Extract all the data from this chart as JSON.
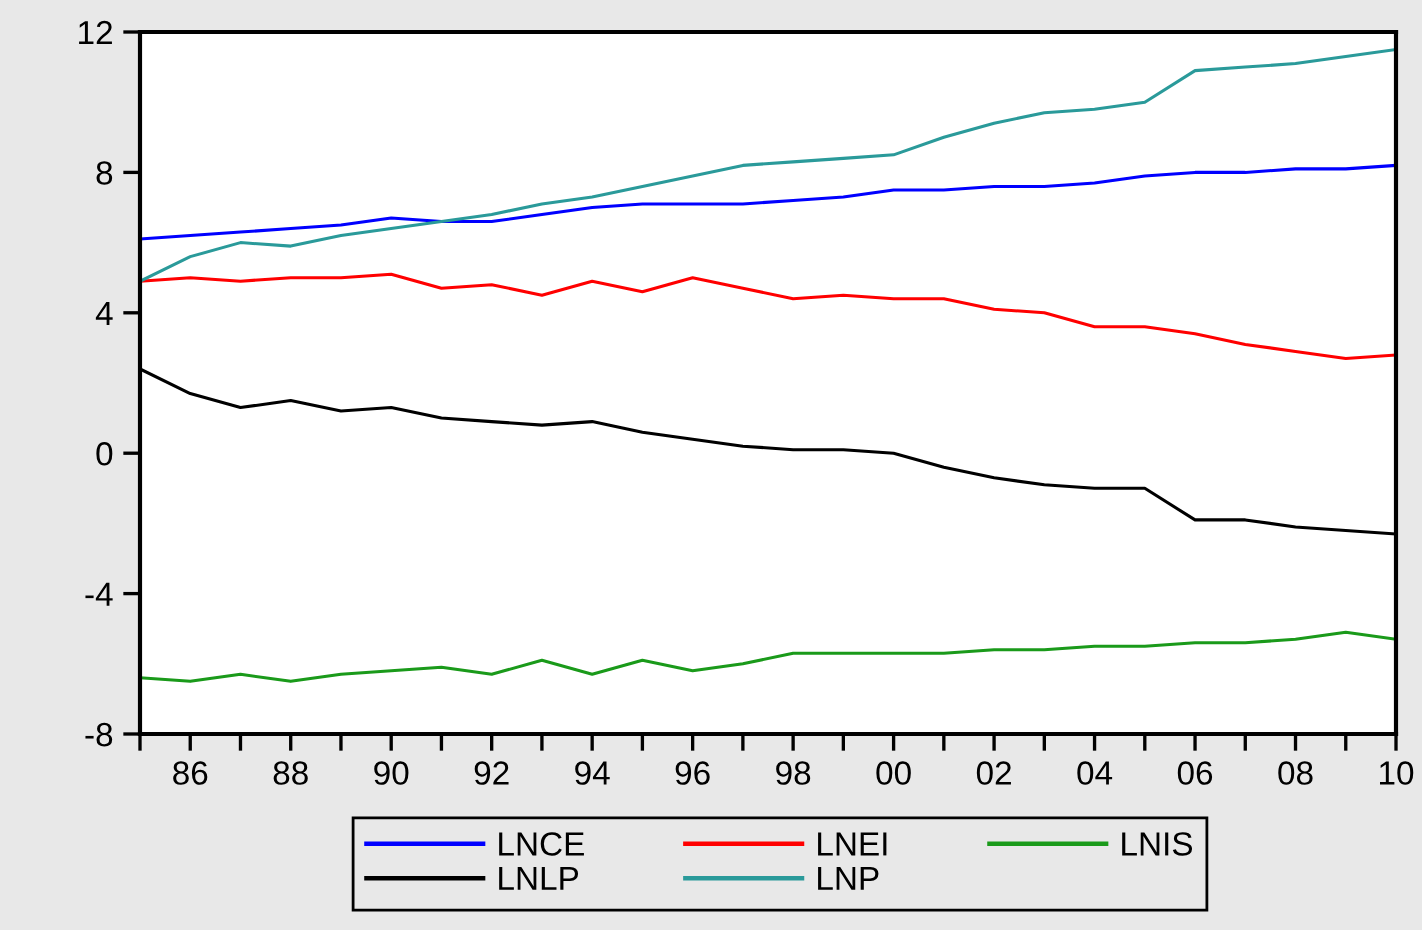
{
  "chart_data": {
    "type": "line",
    "x": [
      1985,
      1986,
      1987,
      1988,
      1989,
      1990,
      1991,
      1992,
      1993,
      1994,
      1995,
      1996,
      1997,
      1998,
      1999,
      2000,
      2001,
      2002,
      2003,
      2004,
      2005,
      2006,
      2007,
      2008,
      2009,
      2010
    ],
    "series": [
      {
        "name": "LNCE",
        "color": "#0000ff",
        "values": [
          6.1,
          6.2,
          6.3,
          6.4,
          6.5,
          6.7,
          6.6,
          6.6,
          6.8,
          7.0,
          7.1,
          7.1,
          7.1,
          7.2,
          7.3,
          7.5,
          7.5,
          7.6,
          7.6,
          7.7,
          7.9,
          8.0,
          8.0,
          8.1,
          8.1,
          8.2
        ]
      },
      {
        "name": "LNEI",
        "color": "#ff0000",
        "values": [
          4.9,
          5.0,
          4.9,
          5.0,
          5.0,
          5.1,
          4.7,
          4.8,
          4.5,
          4.9,
          4.6,
          5.0,
          4.7,
          4.4,
          4.5,
          4.4,
          4.4,
          4.1,
          4.0,
          3.6,
          3.6,
          3.4,
          3.1,
          2.9,
          2.7,
          2.8
        ]
      },
      {
        "name": "LNIS",
        "color": "#1a9a1a",
        "values": [
          -6.4,
          -6.5,
          -6.3,
          -6.5,
          -6.3,
          -6.2,
          -6.1,
          -6.3,
          -5.9,
          -6.3,
          -5.9,
          -6.2,
          -6.0,
          -5.7,
          -5.7,
          -5.7,
          -5.7,
          -5.6,
          -5.6,
          -5.5,
          -5.5,
          -5.4,
          -5.4,
          -5.3,
          -5.1,
          -5.3
        ]
      },
      {
        "name": "LNLP",
        "color": "#000000",
        "values": [
          2.4,
          1.7,
          1.3,
          1.5,
          1.2,
          1.3,
          1.0,
          0.9,
          0.8,
          0.9,
          0.6,
          0.4,
          0.2,
          0.1,
          0.1,
          0.0,
          -0.4,
          -0.7,
          -0.9,
          -1.0,
          -1.0,
          -1.9,
          -1.9,
          -2.1,
          -2.2,
          -2.3
        ]
      },
      {
        "name": "LNP",
        "color": "#2a9a9a",
        "values": [
          4.9,
          5.6,
          6.0,
          5.9,
          6.2,
          6.4,
          6.6,
          6.8,
          7.1,
          7.3,
          7.6,
          7.9,
          8.2,
          8.3,
          8.4,
          8.5,
          9.0,
          9.4,
          9.7,
          9.8,
          10.0,
          10.9,
          11.0,
          11.1,
          11.3,
          11.5
        ]
      }
    ],
    "xlim": [
      1985,
      2010
    ],
    "xticks": [
      {
        "value": 1985,
        "label": null
      },
      {
        "value": 1986,
        "label": "86"
      },
      {
        "value": 1987,
        "label": null
      },
      {
        "value": 1988,
        "label": "88"
      },
      {
        "value": 1989,
        "label": null
      },
      {
        "value": 1990,
        "label": "90"
      },
      {
        "value": 1991,
        "label": null
      },
      {
        "value": 1992,
        "label": "92"
      },
      {
        "value": 1993,
        "label": null
      },
      {
        "value": 1994,
        "label": "94"
      },
      {
        "value": 1995,
        "label": null
      },
      {
        "value": 1996,
        "label": "96"
      },
      {
        "value": 1997,
        "label": null
      },
      {
        "value": 1998,
        "label": "98"
      },
      {
        "value": 1999,
        "label": null
      },
      {
        "value": 2000,
        "label": "00"
      },
      {
        "value": 2001,
        "label": null
      },
      {
        "value": 2002,
        "label": "02"
      },
      {
        "value": 2003,
        "label": null
      },
      {
        "value": 2004,
        "label": "04"
      },
      {
        "value": 2005,
        "label": null
      },
      {
        "value": 2006,
        "label": "06"
      },
      {
        "value": 2007,
        "label": null
      },
      {
        "value": 2008,
        "label": "08"
      },
      {
        "value": 2009,
        "label": null
      },
      {
        "value": 2010,
        "label": "10"
      }
    ],
    "ylim": [
      -8,
      12
    ],
    "yticks": [
      -8,
      -4,
      0,
      4,
      8,
      12
    ],
    "grid": false,
    "legend": "bottom",
    "marker": "none",
    "line_style": "solid"
  }
}
